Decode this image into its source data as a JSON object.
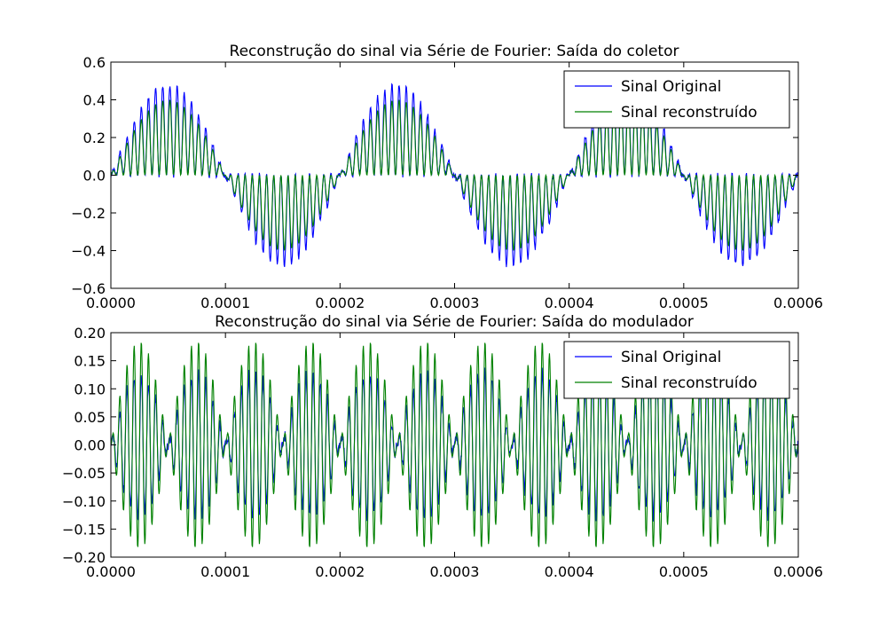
{
  "chart_data": [
    {
      "type": "line",
      "title": "Reconstrução do sinal via Série de Fourier: Saída do coletor",
      "xlim": [
        0,
        0.0006
      ],
      "ylim": [
        -0.6,
        0.6
      ],
      "xticks": [
        "0.0000",
        "0.0001",
        "0.0002",
        "0.0003",
        "0.0004",
        "0.0005",
        "0.0006"
      ],
      "yticks": [
        "−0.6",
        "−0.4",
        "−0.2",
        "0.0",
        "0.2",
        "0.4",
        "0.6"
      ],
      "xtick_values": [
        0,
        0.0001,
        0.0002,
        0.0003,
        0.0004,
        0.0005,
        0.0006
      ],
      "ytick_values": [
        -0.6,
        -0.4,
        -0.2,
        0,
        0.2,
        0.4,
        0.6
      ],
      "legend_position": "top-right",
      "series": [
        {
          "name": "Sinal Original",
          "color": "#0000ff",
          "description_values": {
            "envelope_amplitude": 0.48,
            "envelope_period": 0.0002,
            "carrier_period": 6.25e-06,
            "noise": 0.03
          }
        },
        {
          "name": "Sinal reconstruído",
          "color": "#008000",
          "description_values": {
            "envelope_amplitude": 0.4,
            "envelope_period": 0.0002,
            "carrier_period": 6.25e-06,
            "noise": 0
          }
        }
      ]
    },
    {
      "type": "line",
      "title": "Reconstrução do sinal via Série de Fourier: Saída do modulador",
      "xlim": [
        0,
        0.0006
      ],
      "ylim": [
        -0.2,
        0.2
      ],
      "xticks": [
        "0.0000",
        "0.0001",
        "0.0002",
        "0.0003",
        "0.0004",
        "0.0005",
        "0.0006"
      ],
      "yticks": [
        "−0.20",
        "−0.15",
        "−0.10",
        "−0.05",
        "0.00",
        "0.05",
        "0.10",
        "0.15",
        "0.20"
      ],
      "xtick_values": [
        0,
        0.0001,
        0.0002,
        0.0003,
        0.0004,
        0.0005,
        0.0006
      ],
      "ytick_values": [
        -0.2,
        -0.15,
        -0.1,
        -0.05,
        0,
        0.05,
        0.1,
        0.15,
        0.2
      ],
      "legend_position": "top-right",
      "series": [
        {
          "name": "Sinal Original",
          "color": "#0000ff",
          "description_values": {
            "envelope_amplitude": 0.13,
            "envelope_period": 0.0001,
            "carrier_period": 6.25e-06,
            "noise": 0.02
          }
        },
        {
          "name": "Sinal reconstruído",
          "color": "#008000",
          "description_values": {
            "envelope_amplitude": 0.185,
            "envelope_period": 0.0001,
            "carrier_period": 6.25e-06,
            "noise": 0
          }
        }
      ]
    }
  ]
}
